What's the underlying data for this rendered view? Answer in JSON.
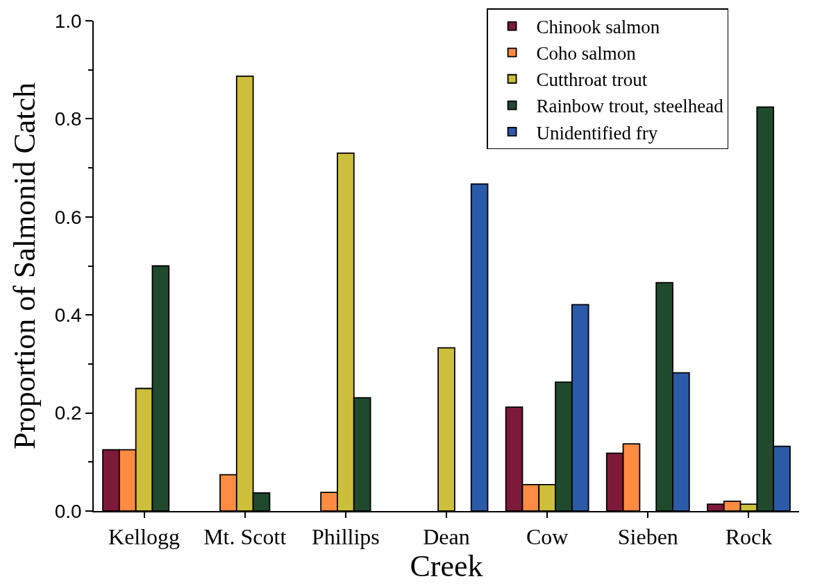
{
  "chart_data": {
    "type": "bar",
    "xlabel": "Creek",
    "ylabel": "Proportion of Salmonid Catch",
    "categories": [
      "Kellogg",
      "Mt. Scott",
      "Phillips",
      "Dean",
      "Cow",
      "Sieben",
      "Rock"
    ],
    "series": [
      {
        "name": "Chinook salmon",
        "color": "#7d1a3a",
        "values": [
          0.125,
          null,
          null,
          null,
          0.212,
          0.118,
          0.014
        ]
      },
      {
        "name": "Coho salmon",
        "color": "#ff8c42",
        "values": [
          0.125,
          0.074,
          0.038,
          null,
          0.054,
          0.137,
          0.02
        ]
      },
      {
        "name": "Cutthroat trout",
        "color": "#cdbf3c",
        "values": [
          0.25,
          0.887,
          0.73,
          0.333,
          0.054,
          null,
          0.014
        ]
      },
      {
        "name": "Rainbow trout, steelhead",
        "color": "#1f4a2e",
        "values": [
          0.5,
          0.037,
          0.231,
          null,
          0.263,
          0.466,
          0.824
        ]
      },
      {
        "name": "Unidentified fry",
        "color": "#2b5aa8",
        "values": [
          null,
          null,
          null,
          0.667,
          0.421,
          0.282,
          0.132
        ]
      }
    ],
    "ylim": [
      0,
      1
    ],
    "yticks": [
      {
        "value": 0,
        "label": "0.0"
      },
      {
        "value": 0.1,
        "label": null
      },
      0.2,
      {
        "value": 0.3,
        "label": null
      },
      0.4,
      {
        "value": 0.5,
        "label": null
      },
      0.6,
      {
        "value": 0.7,
        "label": null
      },
      0.8,
      {
        "value": 0.9,
        "label": null
      },
      {
        "value": 1,
        "label": "1.0"
      }
    ],
    "legend": "top right"
  }
}
